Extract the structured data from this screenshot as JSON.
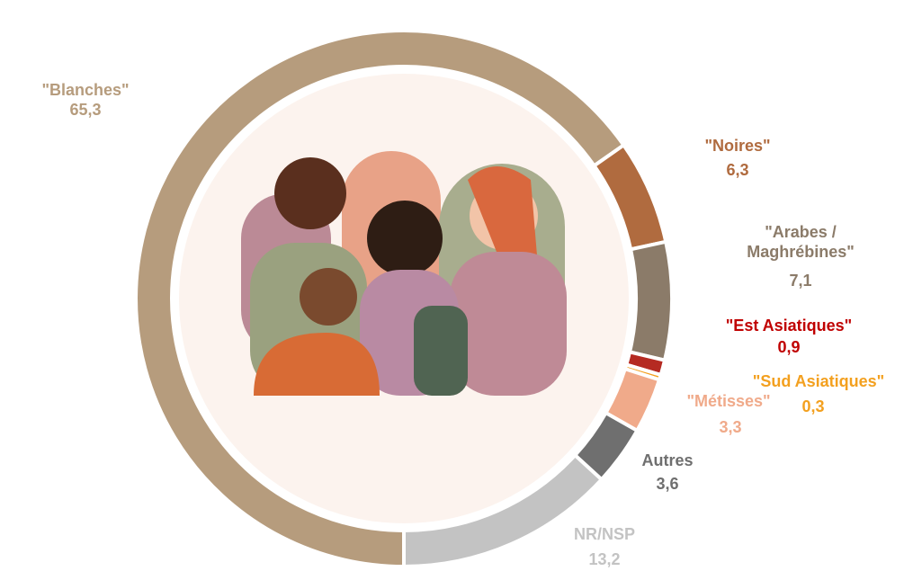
{
  "chart_data": {
    "type": "pie",
    "categories": [
      "\"Blanches\"",
      "\"Noires\"",
      "\"Arabes / Maghrébines\"",
      "\"Est Asiatiques\"",
      "\"Sud Asiatiques\"",
      "\"Métisses\"",
      "Autres",
      "NR/NSP"
    ],
    "values": [
      65.3,
      6.3,
      7.1,
      0.9,
      0.3,
      3.3,
      3.6,
      13.2
    ],
    "value_labels": [
      "65,3",
      "6,3",
      "7,1",
      "0,9",
      "0,3",
      "3,3",
      "3,6",
      "13,2"
    ],
    "colors": [
      "#b69c7d",
      "#b06b3f",
      "#8b7b69",
      "#b52a22",
      "#f3a01f",
      "#f0aa8a",
      "#6f6f6f",
      "#c3c3c3"
    ]
  }
}
